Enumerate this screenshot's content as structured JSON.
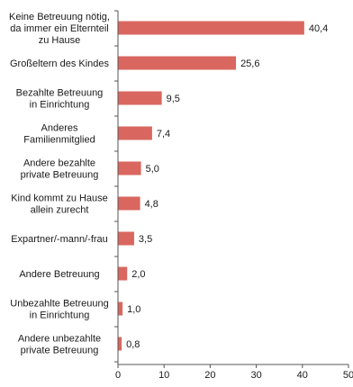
{
  "chart_data": {
    "type": "bar",
    "orientation": "horizontal",
    "categories": [
      "Keine Betreuung nötig,\nda immer ein Elternteil\nzu Hause",
      "Großeltern des Kindes",
      "Bezahlte Betreuung\nin Einrichtung",
      "Anderes\nFamilienmitglied",
      "Andere bezahlte\nprivate Betreuung",
      "Kind kommt zu Hause\nallein zurecht",
      "Expartner/-mann/-frau",
      "Andere Betreuung",
      "Unbezahlte Betreuung\nin Einrichtung",
      "Andere unbezahlte\nprivate Betreuung"
    ],
    "values": [
      40.4,
      25.6,
      9.5,
      7.4,
      5.0,
      4.8,
      3.5,
      2.0,
      1.0,
      0.8
    ],
    "value_labels": [
      "40,4",
      "25,6",
      "9,5",
      "7,4",
      "5,0",
      "4,8",
      "3,5",
      "2,0",
      "1,0",
      "0,8"
    ],
    "xlim": [
      0,
      50
    ],
    "x_ticks": [
      0,
      10,
      20,
      30,
      40,
      50
    ],
    "x_tick_labels": [
      "0",
      "10",
      "20",
      "30",
      "40",
      "50"
    ],
    "grid": false,
    "colors": {
      "bar": "#d9675f",
      "axis": "#555555",
      "text": "#1a1a1a"
    }
  }
}
